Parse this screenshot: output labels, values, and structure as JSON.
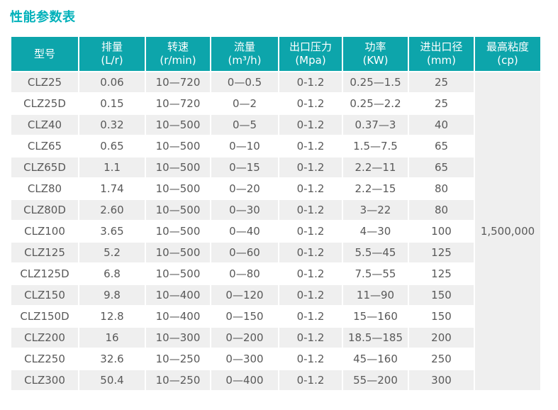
{
  "page": {
    "title": "性能参数表"
  },
  "table": {
    "columns": [
      {
        "key": "model",
        "label": "型号",
        "unit": ""
      },
      {
        "key": "displacement",
        "label": "排量",
        "unit": "(L/r)"
      },
      {
        "key": "speed",
        "label": "转速",
        "unit": "(r/min)"
      },
      {
        "key": "flow",
        "label": "流量",
        "unit": "(m³/h)"
      },
      {
        "key": "pressure",
        "label": "出口压力",
        "unit": "(Mpa)"
      },
      {
        "key": "power",
        "label": "功率",
        "unit": "(KW)"
      },
      {
        "key": "diameter",
        "label": "进出口径",
        "unit": "(mm)"
      },
      {
        "key": "viscosity",
        "label": "最高粘度",
        "unit": "(cp)"
      }
    ],
    "rows": [
      {
        "model": "CLZ25",
        "displacement": "0.06",
        "speed": "10—720",
        "flow": "0—0.5",
        "pressure": "0-1.2",
        "power": "0.25—1.5",
        "diameter": "25"
      },
      {
        "model": "CLZ25D",
        "displacement": "0.15",
        "speed": "10—720",
        "flow": "0—2",
        "pressure": "0-1.2",
        "power": "0.25—2.2",
        "diameter": "25"
      },
      {
        "model": "CLZ40",
        "displacement": "0.32",
        "speed": "10—500",
        "flow": "0—5",
        "pressure": "0-1.2",
        "power": "0.37—3",
        "diameter": "40"
      },
      {
        "model": "CLZ65",
        "displacement": "0.65",
        "speed": "10—500",
        "flow": "0—10",
        "pressure": "0-1.2",
        "power": "1.5—7.5",
        "diameter": "65"
      },
      {
        "model": "CLZ65D",
        "displacement": "1.1",
        "speed": "10—500",
        "flow": "0—15",
        "pressure": "0-1.2",
        "power": "2.2—11",
        "diameter": "65"
      },
      {
        "model": "CLZ80",
        "displacement": "1.74",
        "speed": "10—500",
        "flow": "0—20",
        "pressure": "0-1.2",
        "power": "2.2—15",
        "diameter": "80"
      },
      {
        "model": "CLZ80D",
        "displacement": "2.60",
        "speed": "10—500",
        "flow": "0—30",
        "pressure": "0-1.2",
        "power": "3—22",
        "diameter": "80"
      },
      {
        "model": "CLZ100",
        "displacement": "3.65",
        "speed": "10—500",
        "flow": "0—40",
        "pressure": "0-1.2",
        "power": "4—30",
        "diameter": "100"
      },
      {
        "model": "CLZ125",
        "displacement": "5.2",
        "speed": "10—500",
        "flow": "0—60",
        "pressure": "0-1.2",
        "power": "5.5—45",
        "diameter": "125"
      },
      {
        "model": "CLZ125D",
        "displacement": "6.8",
        "speed": "10—500",
        "flow": "0—80",
        "pressure": "0-1.2",
        "power": "7.5—55",
        "diameter": "125"
      },
      {
        "model": "CLZ150",
        "displacement": "9.8",
        "speed": "10—400",
        "flow": "0—120",
        "pressure": "0-1.2",
        "power": "11—90",
        "diameter": "150"
      },
      {
        "model": "CLZ150D",
        "displacement": "12.8",
        "speed": "10—400",
        "flow": "0—150",
        "pressure": "0-1.2",
        "power": "15—160",
        "diameter": "150"
      },
      {
        "model": "CLZ200",
        "displacement": "16",
        "speed": "10—300",
        "flow": "0—200",
        "pressure": "0-1.2",
        "power": "18.5—185",
        "diameter": "200"
      },
      {
        "model": "CLZ250",
        "displacement": "32.6",
        "speed": "10—250",
        "flow": "0—300",
        "pressure": "0-1.2",
        "power": "45—160",
        "diameter": "250"
      },
      {
        "model": "CLZ300",
        "displacement": "50.4",
        "speed": "10—250",
        "flow": "0—400",
        "pressure": "0-1.2",
        "power": "55—200",
        "diameter": "300"
      }
    ],
    "max_viscosity": "1,500,000"
  },
  "colors": {
    "title": "#00b1ba",
    "header_bg": "#0da5ab",
    "header_text": "#ffffff",
    "row_alt_bg": "#efefef",
    "body_text": "#595959"
  }
}
